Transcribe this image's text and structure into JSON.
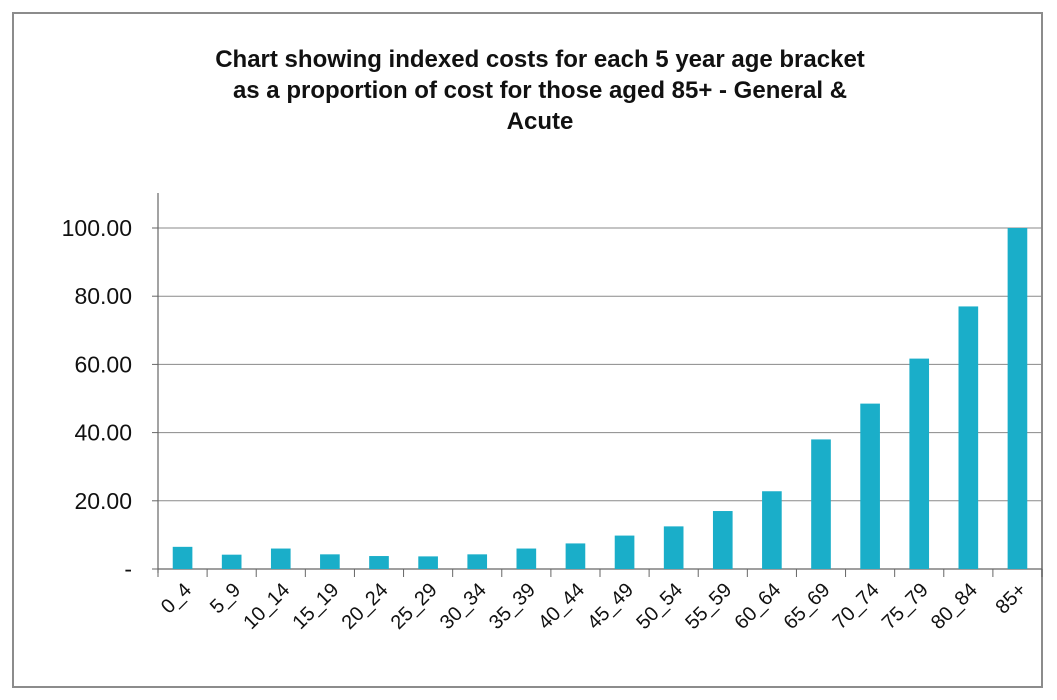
{
  "chart_data": {
    "type": "bar",
    "title_lines": [
      "Chart showing indexed costs for each 5 year age bracket",
      "as a proportion of cost for those aged 85+ - General &",
      "Acute"
    ],
    "xlabel": "",
    "ylabel": "",
    "categories": [
      "0_4",
      "5_9",
      "10_14",
      "15_19",
      "20_24",
      "25_29",
      "30_34",
      "35_39",
      "40_44",
      "45_49",
      "50_54",
      "55_59",
      "60_64",
      "65_69",
      "70_74",
      "75_79",
      "80_84",
      "85+"
    ],
    "values": [
      6.5,
      4.2,
      6.0,
      4.3,
      3.8,
      3.7,
      4.3,
      6.0,
      7.5,
      9.8,
      12.5,
      17.0,
      22.8,
      38.0,
      48.5,
      61.7,
      77.0,
      100.0
    ],
    "yticks": [
      {
        "value": 0,
        "label": "-"
      },
      {
        "value": 20,
        "label": "20.00"
      },
      {
        "value": 40,
        "label": "40.00"
      },
      {
        "value": 60,
        "label": "60.00"
      },
      {
        "value": 80,
        "label": "80.00"
      },
      {
        "value": 100,
        "label": "100.00"
      }
    ],
    "ylim": [
      0,
      100
    ],
    "grid": true,
    "bar_color": "#1aaec9",
    "grid_color": "#8a8a8a"
  }
}
